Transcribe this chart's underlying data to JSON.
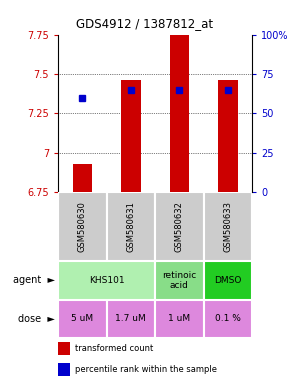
{
  "title": "GDS4912 / 1387812_at",
  "samples": [
    "GSM580630",
    "GSM580631",
    "GSM580632",
    "GSM580633"
  ],
  "red_values": [
    6.93,
    7.46,
    7.87,
    7.46
  ],
  "blue_values_pct": [
    60,
    65,
    65,
    65
  ],
  "ylim": [
    6.75,
    7.75
  ],
  "y_ticks": [
    6.75,
    7.0,
    7.25,
    7.5,
    7.75
  ],
  "y_tick_labels": [
    "6.75",
    "7",
    "7.25",
    "7.5",
    "7.75"
  ],
  "y2_ticks": [
    0,
    25,
    50,
    75,
    100
  ],
  "y2_tick_labels": [
    "0",
    "25",
    "50",
    "75",
    "100%"
  ],
  "agent_groups": [
    {
      "cols": [
        0,
        1
      ],
      "label": "KHS101",
      "color": "#b0f0b0"
    },
    {
      "cols": [
        2
      ],
      "label": "retinoic\nacid",
      "color": "#88dd88"
    },
    {
      "cols": [
        3
      ],
      "label": "DMSO",
      "color": "#22cc22"
    }
  ],
  "dose_labels": [
    "5 uM",
    "1.7 uM",
    "1 uM",
    "0.1 %"
  ],
  "dose_color": "#dd88dd",
  "sample_label_color": "#cccccc",
  "bar_color": "#cc0000",
  "dot_color": "#0000cc",
  "left_label_color": "#cc0000",
  "right_label_color": "#0000cc",
  "legend_red": "transformed count",
  "legend_blue": "percentile rank within the sample"
}
